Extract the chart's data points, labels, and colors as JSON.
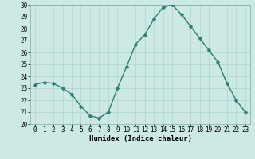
{
  "x": [
    0,
    1,
    2,
    3,
    4,
    5,
    6,
    7,
    8,
    9,
    10,
    11,
    12,
    13,
    14,
    15,
    16,
    17,
    18,
    19,
    20,
    21,
    22,
    23
  ],
  "y": [
    23.3,
    23.5,
    23.4,
    23.0,
    22.5,
    21.5,
    20.7,
    20.5,
    21.0,
    23.0,
    24.8,
    26.7,
    27.5,
    28.8,
    29.8,
    30.0,
    29.2,
    28.2,
    27.2,
    26.2,
    25.2,
    23.4,
    22.0,
    21.0
  ],
  "line_color": "#2e7d6e",
  "marker_color": "#2e7d6e",
  "bg_color": "#cce9e5",
  "grid_color": "#aed4cf",
  "xlabel": "Humidex (Indice chaleur)",
  "ylim": [
    20,
    30
  ],
  "xlim": [
    -0.5,
    23.5
  ],
  "yticks": [
    20,
    21,
    22,
    23,
    24,
    25,
    26,
    27,
    28,
    29,
    30
  ],
  "xticks": [
    0,
    1,
    2,
    3,
    4,
    5,
    6,
    7,
    8,
    9,
    10,
    11,
    12,
    13,
    14,
    15,
    16,
    17,
    18,
    19,
    20,
    21,
    22,
    23
  ],
  "label_fontsize": 6.5,
  "tick_fontsize": 5.5,
  "line_width": 1.0,
  "marker_size": 2.5
}
